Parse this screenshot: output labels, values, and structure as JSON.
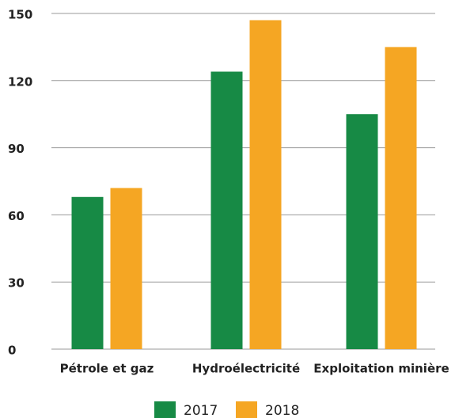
{
  "chart_data": {
    "type": "bar",
    "categories": [
      "Pétrole et gaz",
      "Hydroélectricité",
      "Exploitation minière"
    ],
    "series": [
      {
        "name": "2017",
        "color": "#178a45",
        "values": [
          68,
          124,
          105
        ]
      },
      {
        "name": "2018",
        "color": "#f5a623",
        "values": [
          72,
          147,
          135
        ]
      }
    ],
    "ylim": [
      0,
      150
    ],
    "yticks": [
      0,
      30,
      60,
      90,
      120,
      150
    ],
    "grid": true,
    "legend": "bottom"
  }
}
